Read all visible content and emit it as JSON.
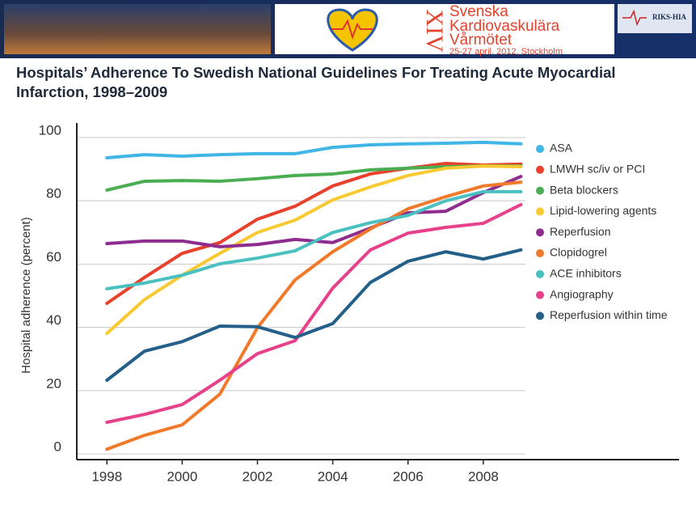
{
  "header": {
    "numeral": "XIV",
    "event_lines": [
      "Svenska",
      "Kardiovaskulära",
      "Vårmötet"
    ],
    "dates": "25-27 april, 2012, Stockholm",
    "logo": "RIKS-HIA"
  },
  "chart_data": {
    "type": "line",
    "title": "Hospitals’ Adherence To Swedish National Guidelines For Treating Acute Myocardial Infarction, 1998–2009",
    "y_label": "Hospital adherence (percent)",
    "x": [
      1998,
      1999,
      2000,
      2001,
      2002,
      2003,
      2004,
      2005,
      2006,
      2007,
      2008,
      2009
    ],
    "xlim": [
      1997.2,
      2013.2
    ],
    "xticks": [
      1998,
      2000,
      2002,
      2004,
      2006,
      2008
    ],
    "ylim": [
      -1.8,
      104.6
    ],
    "yticks": [
      0,
      20,
      40,
      60,
      80,
      100
    ],
    "grid": true,
    "series": [
      {
        "name": "ASA",
        "color": "#41b6e6",
        "values": [
          93.6,
          94.6,
          94.1,
          94.6,
          94.9,
          94.9,
          96.9,
          97.7,
          98,
          98.2,
          98.5,
          98
        ]
      },
      {
        "name": "LMWH sc/iv or PCI",
        "color": "#e8412c",
        "values": [
          47.6,
          55.8,
          63.4,
          66.8,
          74.2,
          78.3,
          84.7,
          88.5,
          90.3,
          91.8,
          91.3,
          91.6
        ]
      },
      {
        "name": "Beta blockers",
        "color": "#4aad52",
        "values": [
          83.4,
          86.2,
          86.4,
          86.2,
          87,
          88,
          88.5,
          89.8,
          90.3,
          90.8,
          91,
          91
        ]
      },
      {
        "name": "Lipid-lowering agents",
        "color": "#f9c932",
        "values": [
          38.1,
          48.8,
          56.5,
          63.4,
          70,
          73.9,
          80.3,
          84.4,
          88,
          90.3,
          91,
          90.8
        ]
      },
      {
        "name": "Reperfusion",
        "color": "#8e2c8f",
        "values": [
          66.5,
          67.3,
          67.3,
          65.5,
          66.2,
          67.8,
          66.8,
          71.4,
          76.2,
          76.7,
          82.6,
          87.7
        ]
      },
      {
        "name": "Clopidogrel",
        "color": "#f07a2a",
        "values": [
          1.5,
          5.9,
          9.2,
          18.9,
          39.9,
          55,
          63.9,
          71.1,
          77.5,
          81.3,
          84.7,
          85.9
        ]
      },
      {
        "name": "ACE inhibitors",
        "color": "#4bc0c0",
        "values": [
          52.2,
          54,
          56.5,
          60.1,
          61.9,
          64.2,
          70,
          73.1,
          75.4,
          80,
          82.9,
          82.9
        ]
      },
      {
        "name": "Angiography",
        "color": "#e8418c",
        "values": [
          10,
          12.5,
          15.6,
          23.3,
          31.7,
          35.8,
          52.4,
          64.5,
          69.8,
          71.6,
          72.9,
          78.8
        ]
      },
      {
        "name": "Reperfusion within time",
        "color": "#236089",
        "values": [
          23.3,
          32.5,
          35.5,
          40.4,
          40.2,
          36.8,
          41.2,
          54.2,
          60.9,
          63.9,
          61.6,
          64.5
        ]
      }
    ]
  }
}
